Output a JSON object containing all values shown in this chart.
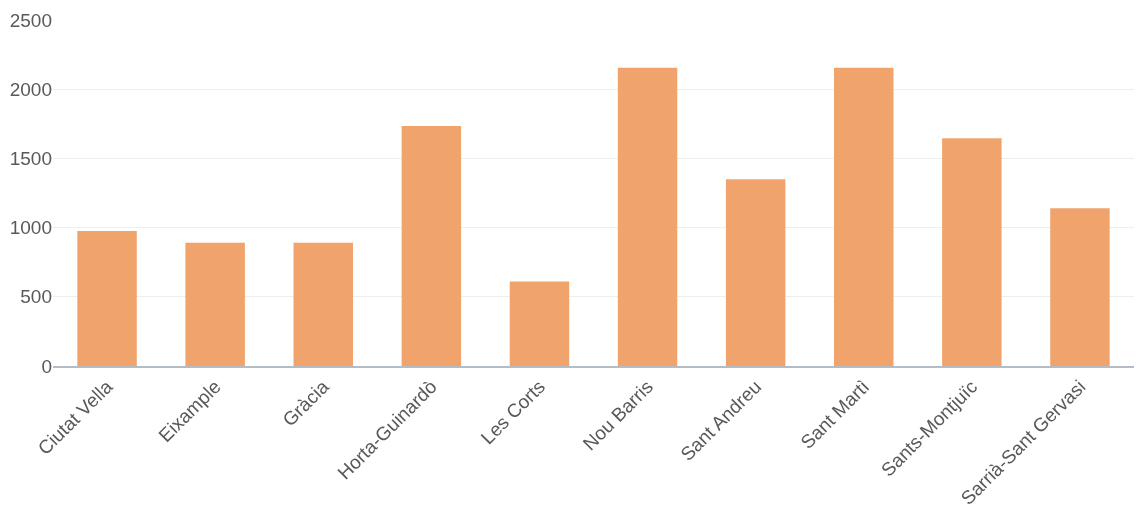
{
  "chart_data": {
    "type": "bar",
    "categories": [
      "Ciutat Vella",
      "Eixample",
      "Gràcia",
      "Horta-Guinardò",
      "Les Corts",
      "Nou Barris",
      "Sant Andreu",
      "Sant Martì",
      "Sants-Montjuïc",
      "Sarrià-Sant Gervasi"
    ],
    "values": [
      975,
      890,
      890,
      1735,
      610,
      2155,
      1350,
      2155,
      1645,
      1140
    ],
    "color": "#f0a36b",
    "ylim": [
      0,
      2500
    ],
    "yticks": [
      0,
      500,
      1000,
      1500,
      2000,
      2500
    ],
    "grid": "y"
  }
}
